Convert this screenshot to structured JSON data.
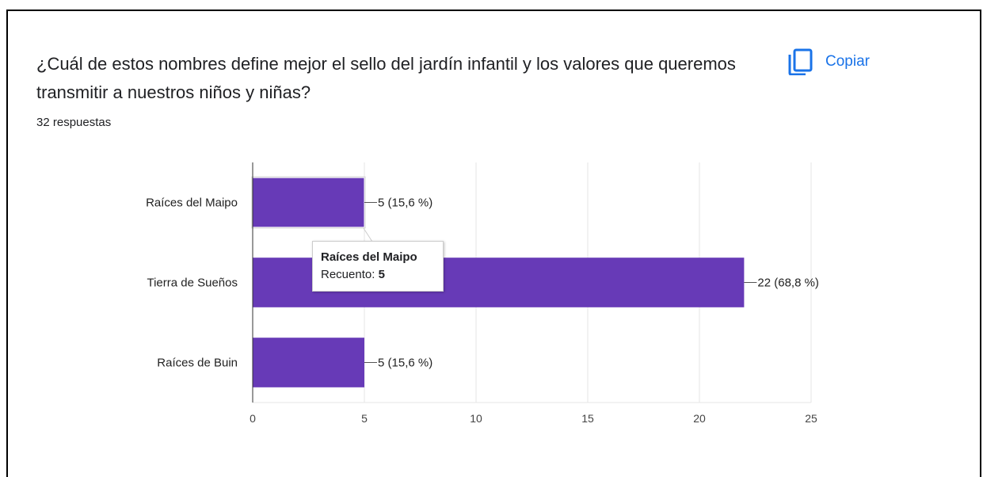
{
  "card": {
    "question": "¿Cuál de estos nombres define mejor el sello del jardín infantil y los valores que queremos transmitir a nuestros niños y niñas?",
    "responses": "32 respuestas",
    "copy_label": "Copiar",
    "copy_icon": "copy-icon"
  },
  "chart_data": {
    "type": "bar",
    "orientation": "horizontal",
    "categories": [
      "Raíces del Maipo",
      "Tierra de Sueños",
      "Raíces de Buin"
    ],
    "values": [
      5,
      22,
      5
    ],
    "data_labels": [
      "5 (15,6 %)",
      "22 (68,8 %)",
      "5 (15,6 %)"
    ],
    "xlim": [
      0,
      25
    ],
    "x_ticks": [
      "0",
      "5",
      "10",
      "15",
      "20",
      "25"
    ],
    "grid": true,
    "bar_color": "#673ab7",
    "highlight_index": 0
  },
  "tooltip": {
    "title": "Raíces del Maipo",
    "count_label": "Recuento:",
    "count_value": "5"
  }
}
